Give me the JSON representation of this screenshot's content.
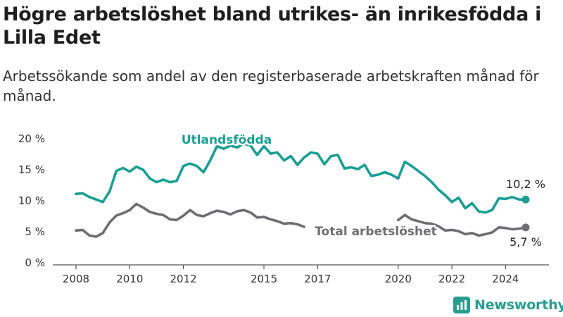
{
  "title": "Högre arbetslöshet bland utrikes- än inrikesfödda i Lilla Edet",
  "subtitle": "Arbetssökande som andel av den registerbaserade arbetskraften månad för månad.",
  "brand": "Newsworthy",
  "colors": {
    "foreign": "#1a9e94",
    "total": "#6e6e72",
    "brand": "#2a9d8f",
    "axis": "#555555"
  },
  "chart_data": {
    "type": "line",
    "title": "Högre arbetslöshet bland utrikes- än inrikesfödda i Lilla Edet",
    "subtitle": "Arbetssökande som andel av den registerbaserade arbetskraften månad för månad.",
    "y_ticks": [
      "0 %",
      "5 %",
      "10 %",
      "15 %",
      "20 %"
    ],
    "x_ticks": [
      "2008",
      "2010",
      "2012",
      "2015",
      "2017",
      "2020",
      "2022",
      "2024"
    ],
    "ylim": [
      0,
      20
    ],
    "grid": false,
    "series": [
      {
        "name": "Utlandsfödda",
        "end_label": "10,2 %",
        "points": [
          [
            "2008-01",
            11.1
          ],
          [
            "2008-04",
            11.2
          ],
          [
            "2008-07",
            10.6
          ],
          [
            "2008-10",
            10.2
          ],
          [
            "2009-01",
            9.8
          ],
          [
            "2009-04",
            11.5
          ],
          [
            "2009-07",
            14.8
          ],
          [
            "2009-10",
            15.3
          ],
          [
            "2010-01",
            14.7
          ],
          [
            "2010-04",
            15.5
          ],
          [
            "2010-07",
            15.0
          ],
          [
            "2010-10",
            13.6
          ],
          [
            "2011-01",
            13.0
          ],
          [
            "2011-04",
            13.4
          ],
          [
            "2011-07",
            13.0
          ],
          [
            "2011-10",
            13.2
          ],
          [
            "2012-01",
            15.6
          ],
          [
            "2012-04",
            16.0
          ],
          [
            "2012-07",
            15.6
          ],
          [
            "2012-10",
            14.6
          ],
          [
            "2013-01",
            16.5
          ],
          [
            "2013-04",
            18.8
          ],
          [
            "2013-07",
            18.4
          ],
          [
            "2013-10",
            18.9
          ],
          [
            "2014-01",
            18.6
          ],
          [
            "2014-04",
            19.2
          ],
          [
            "2014-07",
            18.9
          ],
          [
            "2014-10",
            17.4
          ],
          [
            "2015-01",
            18.8
          ],
          [
            "2015-04",
            17.6
          ],
          [
            "2015-07",
            17.8
          ],
          [
            "2015-10",
            16.5
          ],
          [
            "2016-01",
            17.2
          ],
          [
            "2016-04",
            15.8
          ],
          [
            "2016-07",
            17.0
          ],
          [
            "2016-10",
            17.8
          ],
          [
            "2017-01",
            17.6
          ],
          [
            "2017-04",
            15.9
          ],
          [
            "2017-07",
            17.2
          ],
          [
            "2017-10",
            17.4
          ],
          [
            "2018-01",
            15.2
          ],
          [
            "2018-04",
            15.4
          ],
          [
            "2018-07",
            15.1
          ],
          [
            "2018-10",
            15.8
          ],
          [
            "2019-01",
            14.0
          ],
          [
            "2019-04",
            14.2
          ],
          [
            "2019-07",
            14.6
          ],
          [
            "2019-10",
            14.2
          ],
          [
            "2020-01",
            13.6
          ],
          [
            "2020-04",
            16.3
          ],
          [
            "2020-07",
            15.6
          ],
          [
            "2020-10",
            14.8
          ],
          [
            "2021-01",
            14.0
          ],
          [
            "2021-04",
            13.0
          ],
          [
            "2021-07",
            11.8
          ],
          [
            "2021-10",
            10.9
          ],
          [
            "2022-01",
            9.8
          ],
          [
            "2022-04",
            10.5
          ],
          [
            "2022-07",
            8.8
          ],
          [
            "2022-10",
            9.6
          ],
          [
            "2023-01",
            8.3
          ],
          [
            "2023-04",
            8.1
          ],
          [
            "2023-07",
            8.5
          ],
          [
            "2023-10",
            10.4
          ],
          [
            "2024-01",
            10.3
          ],
          [
            "2024-04",
            10.6
          ],
          [
            "2024-07",
            10.2
          ],
          [
            "2024-10",
            10.2
          ]
        ]
      },
      {
        "name": "Total arbetslöshet",
        "end_label": "5,7 %",
        "gaps": [
          [
            "2016-07",
            "2020-01"
          ]
        ],
        "points": [
          [
            "2008-01",
            5.2
          ],
          [
            "2008-04",
            5.3
          ],
          [
            "2008-07",
            4.4
          ],
          [
            "2008-10",
            4.2
          ],
          [
            "2009-01",
            4.8
          ],
          [
            "2009-04",
            6.5
          ],
          [
            "2009-07",
            7.6
          ],
          [
            "2009-10",
            8.0
          ],
          [
            "2010-01",
            8.5
          ],
          [
            "2010-04",
            9.5
          ],
          [
            "2010-07",
            8.9
          ],
          [
            "2010-10",
            8.2
          ],
          [
            "2011-01",
            7.9
          ],
          [
            "2011-04",
            7.7
          ],
          [
            "2011-07",
            7.0
          ],
          [
            "2011-10",
            6.9
          ],
          [
            "2012-01",
            7.6
          ],
          [
            "2012-04",
            8.5
          ],
          [
            "2012-07",
            7.7
          ],
          [
            "2012-10",
            7.5
          ],
          [
            "2013-01",
            8.0
          ],
          [
            "2013-04",
            8.4
          ],
          [
            "2013-07",
            8.2
          ],
          [
            "2013-10",
            7.8
          ],
          [
            "2014-01",
            8.3
          ],
          [
            "2014-04",
            8.5
          ],
          [
            "2014-07",
            8.1
          ],
          [
            "2014-10",
            7.3
          ],
          [
            "2015-01",
            7.4
          ],
          [
            "2015-04",
            7.0
          ],
          [
            "2015-07",
            6.7
          ],
          [
            "2015-10",
            6.3
          ],
          [
            "2016-01",
            6.4
          ],
          [
            "2016-04",
            6.2
          ],
          [
            "2016-07",
            5.8
          ],
          [
            "2020-01",
            6.9
          ],
          [
            "2020-04",
            7.7
          ],
          [
            "2020-07",
            7.0
          ],
          [
            "2020-10",
            6.7
          ],
          [
            "2021-01",
            6.4
          ],
          [
            "2021-04",
            6.3
          ],
          [
            "2021-07",
            5.9
          ],
          [
            "2021-10",
            5.2
          ],
          [
            "2022-01",
            5.3
          ],
          [
            "2022-04",
            5.1
          ],
          [
            "2022-07",
            4.6
          ],
          [
            "2022-10",
            4.8
          ],
          [
            "2023-01",
            4.4
          ],
          [
            "2023-04",
            4.6
          ],
          [
            "2023-07",
            4.9
          ],
          [
            "2023-10",
            5.7
          ],
          [
            "2024-01",
            5.6
          ],
          [
            "2024-04",
            5.4
          ],
          [
            "2024-07",
            5.5
          ],
          [
            "2024-10",
            5.7
          ]
        ]
      }
    ]
  }
}
